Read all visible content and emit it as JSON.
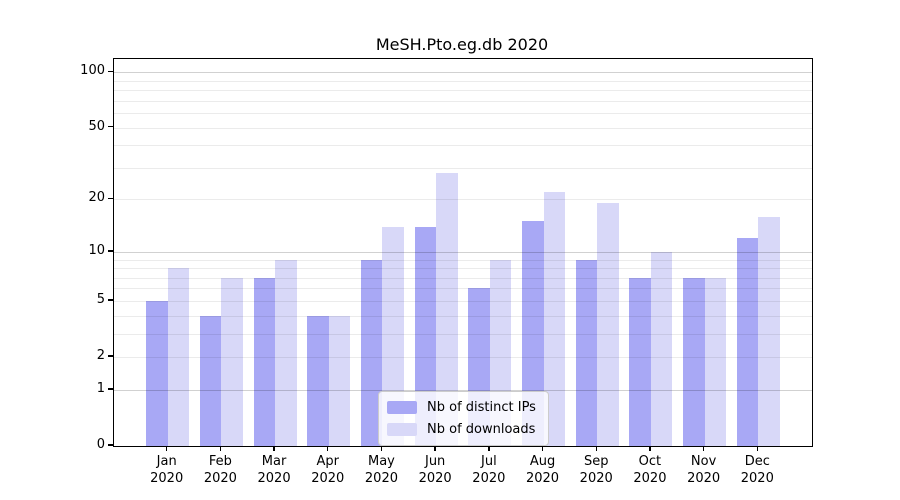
{
  "chart_data": {
    "type": "bar",
    "title": "MeSH.Pto.eg.db 2020",
    "categories": [
      "Jan 2020",
      "Feb 2020",
      "Mar 2020",
      "Apr 2020",
      "May 2020",
      "Jun 2020",
      "Jul 2020",
      "Aug 2020",
      "Sep 2020",
      "Oct 2020",
      "Nov 2020",
      "Dec 2020"
    ],
    "series": [
      {
        "name": "Nb of distinct IPs",
        "color": "#a8a8f5",
        "values": [
          5,
          4,
          7,
          4,
          9,
          14,
          6,
          15,
          9,
          7,
          7,
          12
        ]
      },
      {
        "name": "Nb of downloads",
        "color": "#d8d8f8",
        "values": [
          8,
          7,
          9,
          4,
          14,
          28,
          9,
          22,
          19,
          10,
          7,
          16
        ]
      }
    ],
    "yscale": "log1p",
    "ylim": [
      0,
      118
    ],
    "yticks": [
      0,
      1,
      2,
      5,
      10,
      20,
      50,
      100
    ],
    "major_gridlines": [
      1,
      10,
      100
    ],
    "minor_gridlines": [
      2,
      3,
      4,
      5,
      6,
      7,
      8,
      9,
      20,
      30,
      40,
      50,
      60,
      70,
      80,
      90
    ],
    "grid": true,
    "legend_position": "bottom-center-inside",
    "xlabel": "",
    "ylabel": ""
  }
}
